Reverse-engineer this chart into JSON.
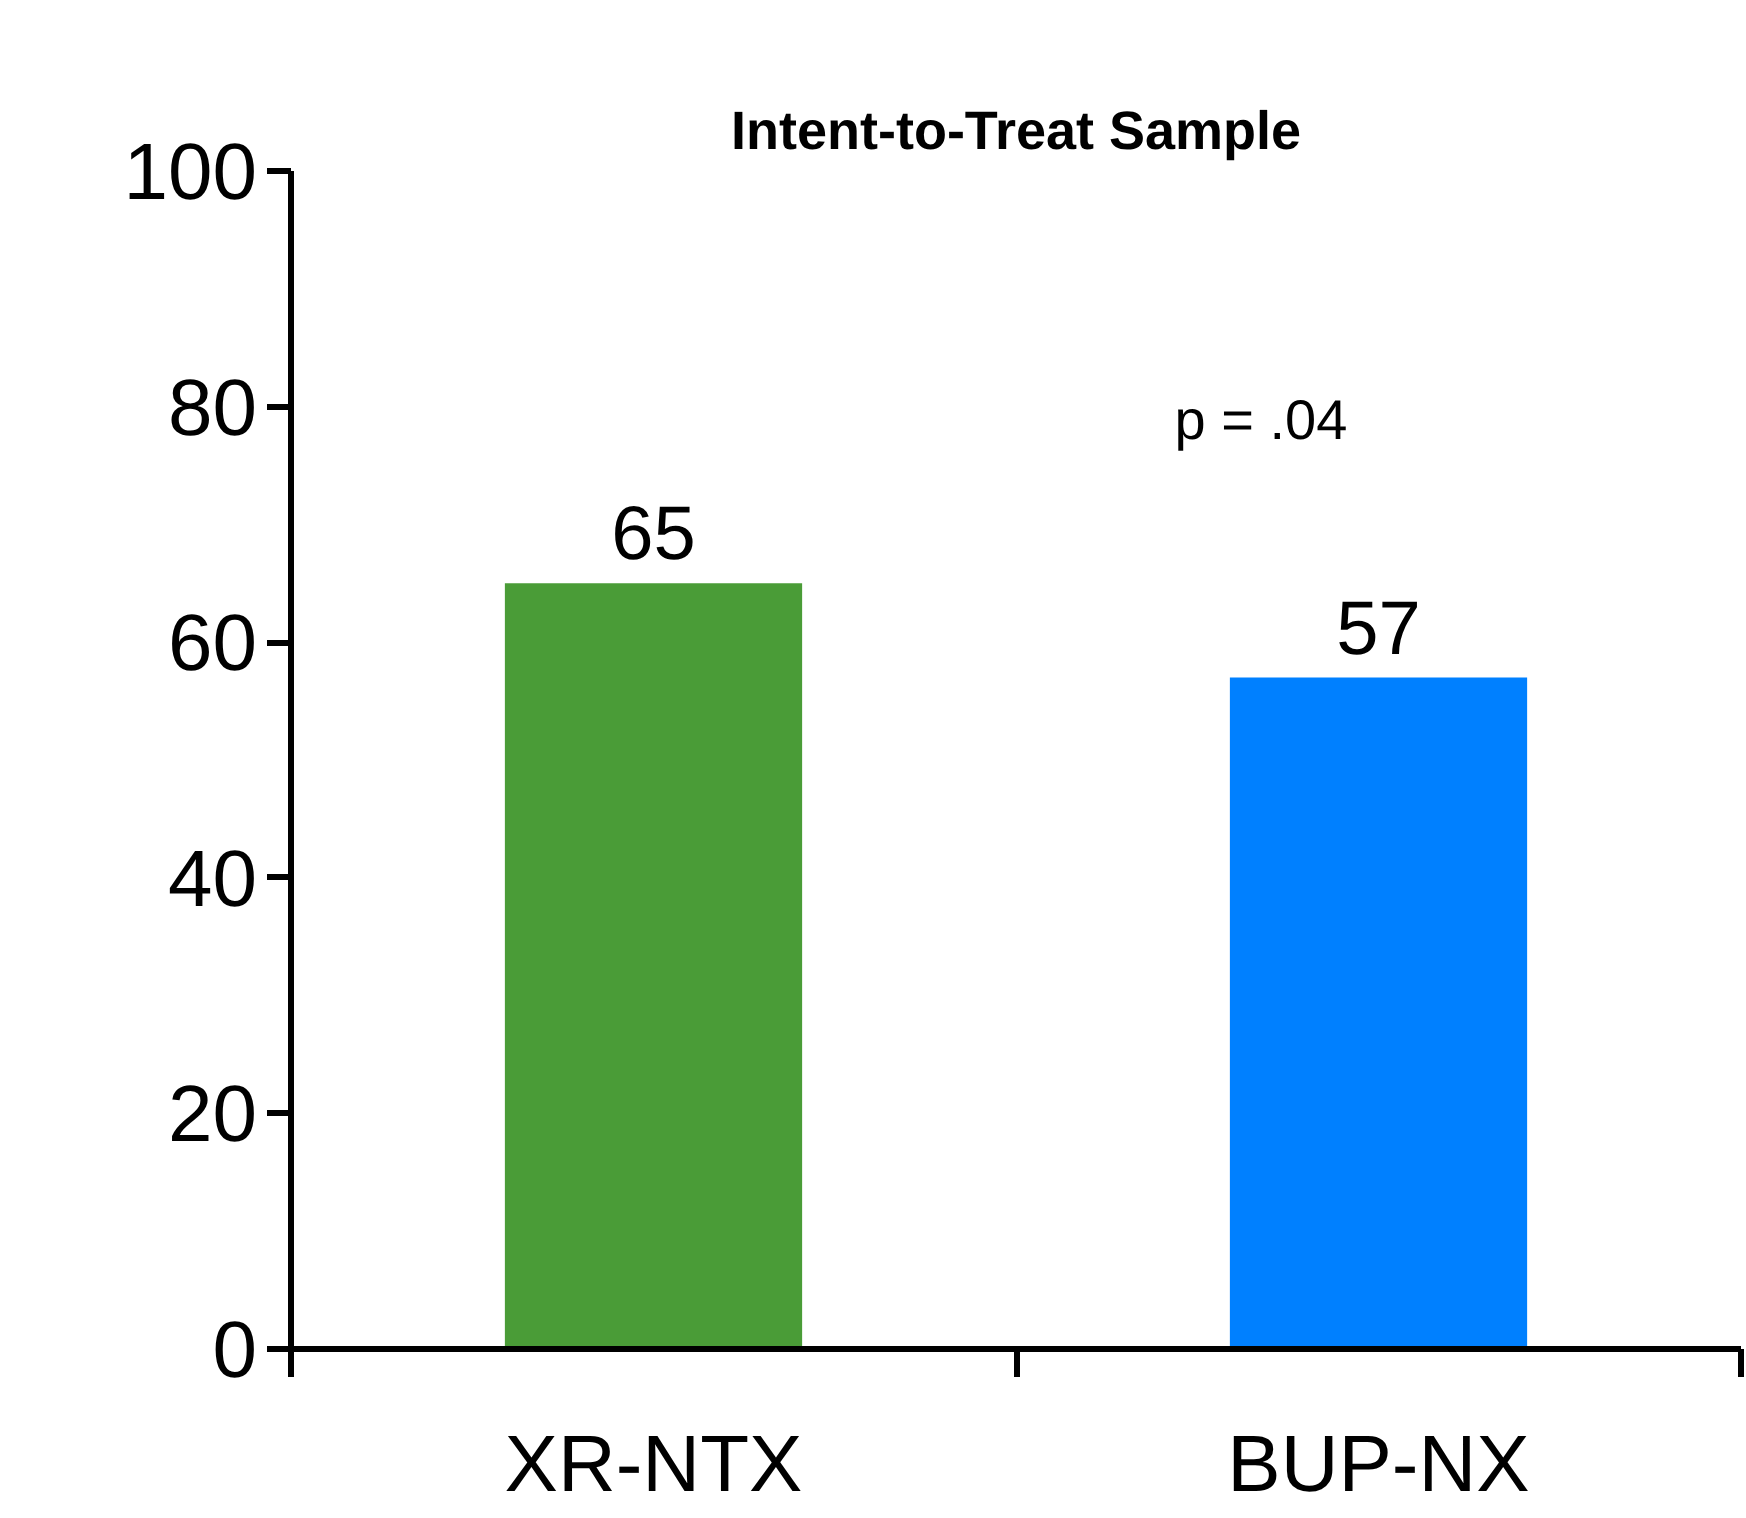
{
  "chart_data": {
    "type": "bar",
    "title": "Intent-to-Treat Sample",
    "categories": [
      "XR-NTX",
      "BUP-NX"
    ],
    "values": [
      65,
      57
    ],
    "colors": [
      "#4a9c37",
      "#0080ff"
    ],
    "ylim": [
      0,
      100
    ],
    "yticks": [
      0,
      20,
      40,
      60,
      80,
      100
    ],
    "data_labels": true,
    "grid": false,
    "annotations": [
      "p = .04"
    ]
  }
}
